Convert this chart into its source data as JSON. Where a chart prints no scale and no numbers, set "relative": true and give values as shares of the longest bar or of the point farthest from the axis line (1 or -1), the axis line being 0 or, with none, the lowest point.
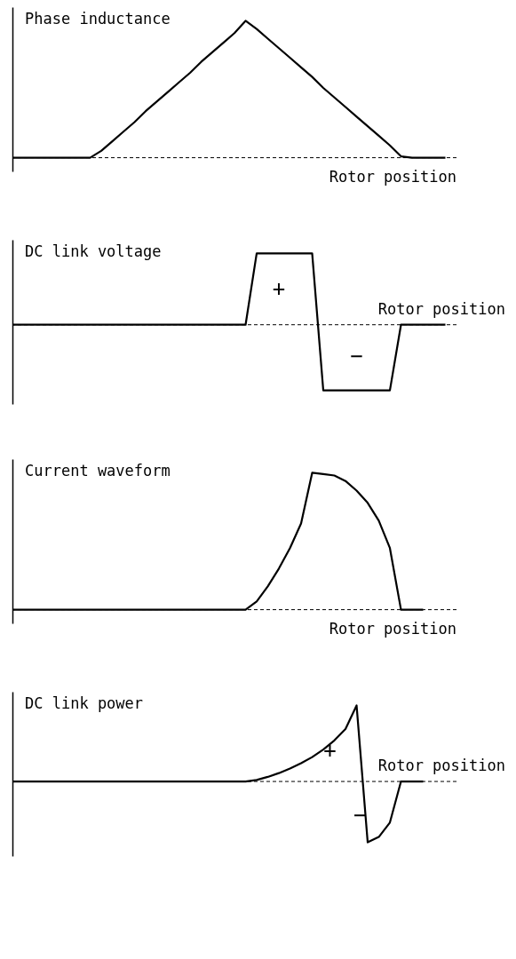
{
  "chart_data": [
    {
      "type": "line",
      "relative": true,
      "ylabel": "Phase inductance",
      "xlabel": "Rotor position",
      "line_style": "solid",
      "categories": [
        null,
        null,
        null,
        null,
        null,
        null,
        null,
        null,
        null,
        null,
        null,
        null,
        null,
        null,
        null,
        null,
        null,
        null,
        null,
        null,
        null,
        null,
        null,
        null,
        null,
        null,
        null,
        null,
        null,
        null,
        null,
        null,
        null,
        null,
        null,
        null,
        null,
        null,
        null,
        null
      ],
      "series": [
        {
          "color": "#000000",
          "values": [
            0,
            0,
            0,
            0,
            0,
            0,
            0,
            0,
            0.05,
            0.12,
            0.19,
            0.26,
            0.34,
            0.41,
            0.48,
            0.55,
            0.62,
            0.7,
            0.77,
            0.84,
            0.91,
            1.0,
            0.94,
            0.87,
            0.8,
            0.73,
            0.66,
            0.59,
            0.51,
            0.44,
            0.37,
            0.3,
            0.23,
            0.16,
            0.09,
            0.01,
            0,
            0,
            0,
            0
          ]
        }
      ],
      "ref_lines": [
        {
          "axis": "y",
          "value": 0,
          "line_style": "dashed",
          "color": "#000000"
        }
      ]
    },
    {
      "type": "line",
      "relative": true,
      "ylabel": "DC link voltage",
      "xlabel": "Rotor position",
      "line_style": "solid",
      "categories": [
        null,
        null,
        null,
        null,
        null,
        null,
        null,
        null,
        null,
        null,
        null,
        null,
        null,
        null,
        null,
        null,
        null,
        null,
        null,
        null,
        null,
        null,
        null,
        null,
        null,
        null,
        null,
        null,
        null,
        null,
        null,
        null,
        null,
        null,
        null,
        null,
        null,
        null,
        null,
        null
      ],
      "series": [
        {
          "color": "#000000",
          "values": [
            0,
            0,
            0,
            0,
            0,
            0,
            0,
            0,
            0,
            0,
            0,
            0,
            0,
            0,
            0,
            0,
            0,
            0,
            0,
            0,
            0,
            0,
            1,
            1,
            1,
            1,
            1,
            1,
            -0.92,
            -0.92,
            -0.92,
            -0.92,
            -0.92,
            -0.92,
            -0.92,
            0,
            0,
            0,
            0,
            0
          ]
        }
      ],
      "ref_lines": [
        {
          "axis": "y",
          "value": 0,
          "line_style": "dashed",
          "color": "#000000"
        }
      ],
      "annotations": [
        "+",
        "−"
      ]
    },
    {
      "type": "line",
      "relative": true,
      "ylabel": "Current waveform",
      "xlabel": "Rotor position",
      "line_style": "solid",
      "categories": [
        null,
        null,
        null,
        null,
        null,
        null,
        null,
        null,
        null,
        null,
        null,
        null,
        null,
        null,
        null,
        null,
        null,
        null,
        null,
        null,
        null,
        null,
        null,
        null,
        null,
        null,
        null,
        null,
        null,
        null,
        null,
        null,
        null,
        null,
        null,
        null,
        null,
        null
      ],
      "series": [
        {
          "color": "#000000",
          "values": [
            0,
            0,
            0,
            0,
            0,
            0,
            0,
            0,
            0,
            0,
            0,
            0,
            0,
            0,
            0,
            0,
            0,
            0,
            0,
            0,
            0,
            0,
            0.06,
            0.17,
            0.3,
            0.45,
            0.63,
            1.0,
            0.99,
            0.98,
            0.94,
            0.87,
            0.78,
            0.65,
            0.45,
            0,
            0,
            0
          ]
        }
      ],
      "ref_lines": [
        {
          "axis": "y",
          "value": 0,
          "line_style": "dashed",
          "color": "#000000"
        }
      ]
    },
    {
      "type": "line",
      "relative": true,
      "ylabel": "DC link power",
      "xlabel": "Rotor position",
      "line_style": "solid",
      "categories": [
        null,
        null,
        null,
        null,
        null,
        null,
        null,
        null,
        null,
        null,
        null,
        null,
        null,
        null,
        null,
        null,
        null,
        null,
        null,
        null,
        null,
        null,
        null,
        null,
        null,
        null,
        null,
        null,
        null,
        null,
        null,
        null,
        null,
        null,
        null,
        null,
        null,
        null
      ],
      "series": [
        {
          "color": "#000000",
          "values": [
            0,
            0,
            0,
            0,
            0,
            0,
            0,
            0,
            0,
            0,
            0,
            0,
            0,
            0,
            0,
            0,
            0,
            0,
            0,
            0,
            0,
            0,
            0.02,
            0.06,
            0.11,
            0.17,
            0.24,
            0.32,
            0.42,
            0.54,
            0.69,
            1.0,
            -0.8,
            -0.73,
            -0.54,
            0,
            0,
            0
          ]
        }
      ],
      "ref_lines": [
        {
          "axis": "y",
          "value": 0,
          "line_style": "dashed",
          "color": "#000000"
        }
      ],
      "annotations": [
        "+",
        "−"
      ]
    }
  ]
}
